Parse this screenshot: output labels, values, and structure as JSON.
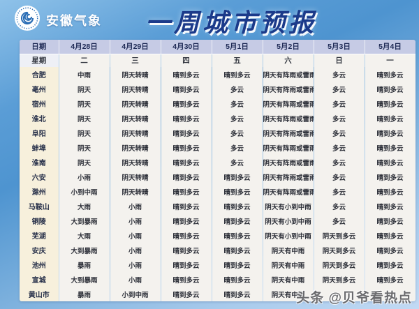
{
  "header": {
    "agency": "安徽气象",
    "title": "一周城市预报"
  },
  "watermark": "头条 @贝爷看热点",
  "colors": {
    "page_blue": "#4e94d0",
    "title_navy": "#1b3a8a",
    "date_row_bg": "#c6cbe5",
    "week_row_bg": "#eef0f6",
    "city_col_bg": "#f7f0dc",
    "cell_bg": "#f4f2ee"
  },
  "chart_data": {
    "type": "table",
    "title": "一周城市预报",
    "header_row_label": "日期",
    "week_row_label": "星期",
    "dates": [
      "4月28日",
      "4月29日",
      "4月30日",
      "5月1日",
      "5月2日",
      "5月3日",
      "5月4日"
    ],
    "weekdays": [
      "二",
      "三",
      "四",
      "五",
      "六",
      "日",
      "一"
    ],
    "rows": [
      {
        "city": "合肥",
        "forecast": [
          "中雨",
          "阴天转晴",
          "晴到多云",
          "晴到多云",
          "阴天有阵雨或雷雨",
          "多云",
          "晴到多云"
        ]
      },
      {
        "city": "亳州",
        "forecast": [
          "阴天",
          "阴天转晴",
          "晴到多云",
          "多云",
          "阴天有阵雨或雷雨",
          "多云",
          "晴到多云"
        ]
      },
      {
        "city": "宿州",
        "forecast": [
          "阴天",
          "阴天转晴",
          "晴到多云",
          "多云",
          "阴天有阵雨或雷雨",
          "多云",
          "晴到多云"
        ]
      },
      {
        "city": "淮北",
        "forecast": [
          "阴天",
          "阴天转晴",
          "晴到多云",
          "多云",
          "阴天有阵雨或雷雨",
          "多云",
          "晴到多云"
        ]
      },
      {
        "city": "阜阳",
        "forecast": [
          "阴天",
          "阴天转晴",
          "晴到多云",
          "多云",
          "阴天有阵雨或雷雨",
          "多云",
          "晴到多云"
        ]
      },
      {
        "city": "蚌埠",
        "forecast": [
          "阴天",
          "阴天转晴",
          "晴到多云",
          "多云",
          "阴天有阵雨或雷雨",
          "多云",
          "晴到多云"
        ]
      },
      {
        "city": "淮南",
        "forecast": [
          "阴天",
          "阴天转晴",
          "晴到多云",
          "多云",
          "阴天有阵雨或雷雨",
          "多云",
          "晴到多云"
        ]
      },
      {
        "city": "六安",
        "forecast": [
          "小雨",
          "阴天转晴",
          "晴到多云",
          "晴到多云",
          "阴天有阵雨或雷雨",
          "多云",
          "晴到多云"
        ]
      },
      {
        "city": "滁州",
        "forecast": [
          "小到中雨",
          "阴天转晴",
          "晴到多云",
          "晴到多云",
          "阴天有阵雨或雷雨",
          "多云",
          "晴到多云"
        ]
      },
      {
        "city": "马鞍山",
        "forecast": [
          "大雨",
          "小雨",
          "晴到多云",
          "晴到多云",
          "阴天有小到中雨",
          "多云",
          "晴到多云"
        ]
      },
      {
        "city": "铜陵",
        "forecast": [
          "大到暴雨",
          "小雨",
          "晴到多云",
          "晴到多云",
          "阴天有小到中雨",
          "多云",
          "晴到多云"
        ]
      },
      {
        "city": "芜湖",
        "forecast": [
          "大雨",
          "小雨",
          "晴到多云",
          "晴到多云",
          "阴天有小到中雨",
          "阴天到多云",
          "晴到多云"
        ]
      },
      {
        "city": "安庆",
        "forecast": [
          "大到暴雨",
          "小雨",
          "晴到多云",
          "晴到多云",
          "阴天有中雨",
          "阴天到多云",
          "晴到多云"
        ]
      },
      {
        "city": "池州",
        "forecast": [
          "暴雨",
          "小雨",
          "晴到多云",
          "晴到多云",
          "阴天有中雨",
          "阴天到多云",
          "晴到多云"
        ]
      },
      {
        "city": "宣城",
        "forecast": [
          "大到暴雨",
          "小雨",
          "晴到多云",
          "晴到多云",
          "阴天有中雨",
          "阴天到多云",
          "晴到多云"
        ]
      },
      {
        "city": "黄山市",
        "forecast": [
          "暴雨",
          "小到中雨",
          "晴到多云",
          "晴到多云",
          "阴天有中雨",
          "",
          ""
        ]
      }
    ]
  }
}
